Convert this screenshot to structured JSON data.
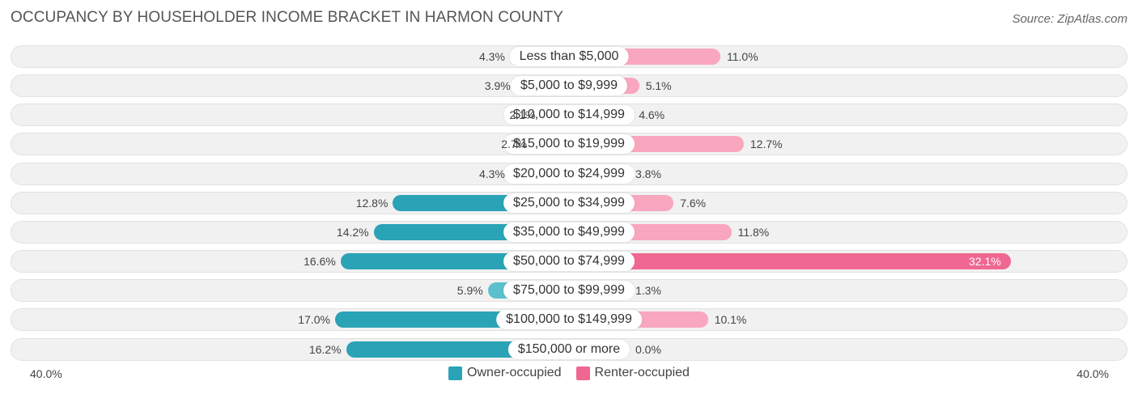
{
  "header": {
    "title": "OCCUPANCY BY HOUSEHOLDER INCOME BRACKET IN HARMON COUNTY",
    "source": "Source: ZipAtlas.com"
  },
  "colors": {
    "owner": "#5cc0cc",
    "owner_strong": "#2aa3b6",
    "renter": "#f9a6bf",
    "renter_strong": "#f06891"
  },
  "chart_data": {
    "type": "bar",
    "orientation": "horizontal-diverging",
    "title": "OCCUPANCY BY HOUSEHOLDER INCOME BRACKET IN HARMON COUNTY",
    "categories": [
      "Less than $5,000",
      "$5,000 to $9,999",
      "$10,000 to $14,999",
      "$15,000 to $19,999",
      "$20,000 to $24,999",
      "$25,000 to $34,999",
      "$35,000 to $49,999",
      "$50,000 to $74,999",
      "$75,000 to $99,999",
      "$100,000 to $149,999",
      "$150,000 or more"
    ],
    "series": [
      {
        "name": "Owner-occupied",
        "values": [
          4.3,
          3.9,
          2.1,
          2.7,
          4.3,
          12.8,
          14.2,
          16.6,
          5.9,
          17.0,
          16.2
        ],
        "labels": [
          "4.3%",
          "3.9%",
          "2.1%",
          "2.7%",
          "4.3%",
          "12.8%",
          "14.2%",
          "16.6%",
          "5.9%",
          "17.0%",
          "16.2%"
        ]
      },
      {
        "name": "Renter-occupied",
        "values": [
          11.0,
          5.1,
          4.6,
          12.7,
          3.8,
          7.6,
          11.8,
          32.1,
          1.3,
          10.1,
          0.0
        ],
        "labels": [
          "11.0%",
          "5.1%",
          "4.6%",
          "12.7%",
          "3.8%",
          "7.6%",
          "11.8%",
          "32.1%",
          "1.3%",
          "10.1%",
          "0.0%"
        ]
      }
    ],
    "axis": {
      "max": 40.0,
      "left_label": "40.0%",
      "right_label": "40.0%"
    },
    "legend": [
      "Owner-occupied",
      "Renter-occupied"
    ],
    "legend_position": "bottom-center"
  }
}
